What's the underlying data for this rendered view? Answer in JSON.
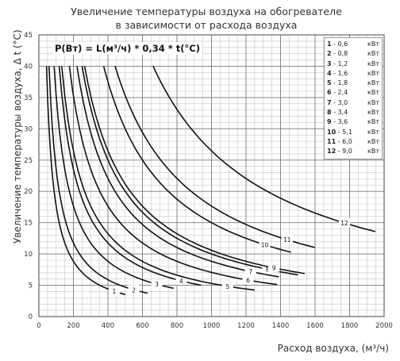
{
  "chart_data": {
    "type": "line",
    "title": "Увеличение температуры воздуха на обогревателе",
    "subtitle": "в зависимости от расхода воздуха",
    "xlabel": "Расход воздуха, (м³/ч)",
    "ylabel": "Увеличение температуры воздуха, Δ t (°C)",
    "formula": "P(Вт) = L(м³/ч) * 0,34 * t(°C)",
    "xlim": [
      0,
      2000
    ],
    "ylim": [
      0,
      45
    ],
    "x_ticks": [
      0,
      200,
      400,
      600,
      800,
      1000,
      1200,
      1400,
      1600,
      1800,
      2000
    ],
    "y_ticks": [
      0,
      5,
      10,
      15,
      20,
      25,
      30,
      35,
      40,
      45
    ],
    "grid": true,
    "legend_position": "top-right",
    "series": [
      {
        "name": "1",
        "power_label": "0,6",
        "unit": "кВт",
        "power_w": 600,
        "x_end": 500
      },
      {
        "name": "2",
        "power_label": "0,8",
        "unit": "кВт",
        "power_w": 800,
        "x_end": 630
      },
      {
        "name": "3",
        "power_label": "1,2",
        "unit": "кВт",
        "power_w": 1200,
        "x_end": 780
      },
      {
        "name": "4",
        "power_label": "1,6",
        "unit": "кВт",
        "power_w": 1600,
        "x_end": 940
      },
      {
        "name": "5",
        "power_label": "1,8",
        "unit": "кВт",
        "power_w": 1800,
        "x_end": 1250
      },
      {
        "name": "6",
        "power_label": "2,4",
        "unit": "кВт",
        "power_w": 2400,
        "x_end": 1380
      },
      {
        "name": "7",
        "power_label": "3,0",
        "unit": "кВт",
        "power_w": 3000,
        "x_end": 1390
      },
      {
        "name": "8",
        "power_label": "3,4",
        "unit": "кВт",
        "power_w": 3400,
        "x_end": 1500
      },
      {
        "name": "9",
        "power_label": "3,6",
        "unit": "кВт",
        "power_w": 3600,
        "x_end": 1540
      },
      {
        "name": "10",
        "power_label": "5,1",
        "unit": "кВт",
        "power_w": 5100,
        "x_end": 1460
      },
      {
        "name": "11",
        "power_label": "6,0",
        "unit": "кВт",
        "power_w": 6000,
        "x_end": 1600
      },
      {
        "name": "12",
        "power_label": "9,0",
        "unit": "кВт",
        "power_w": 9000,
        "x_end": 1950
      }
    ]
  }
}
